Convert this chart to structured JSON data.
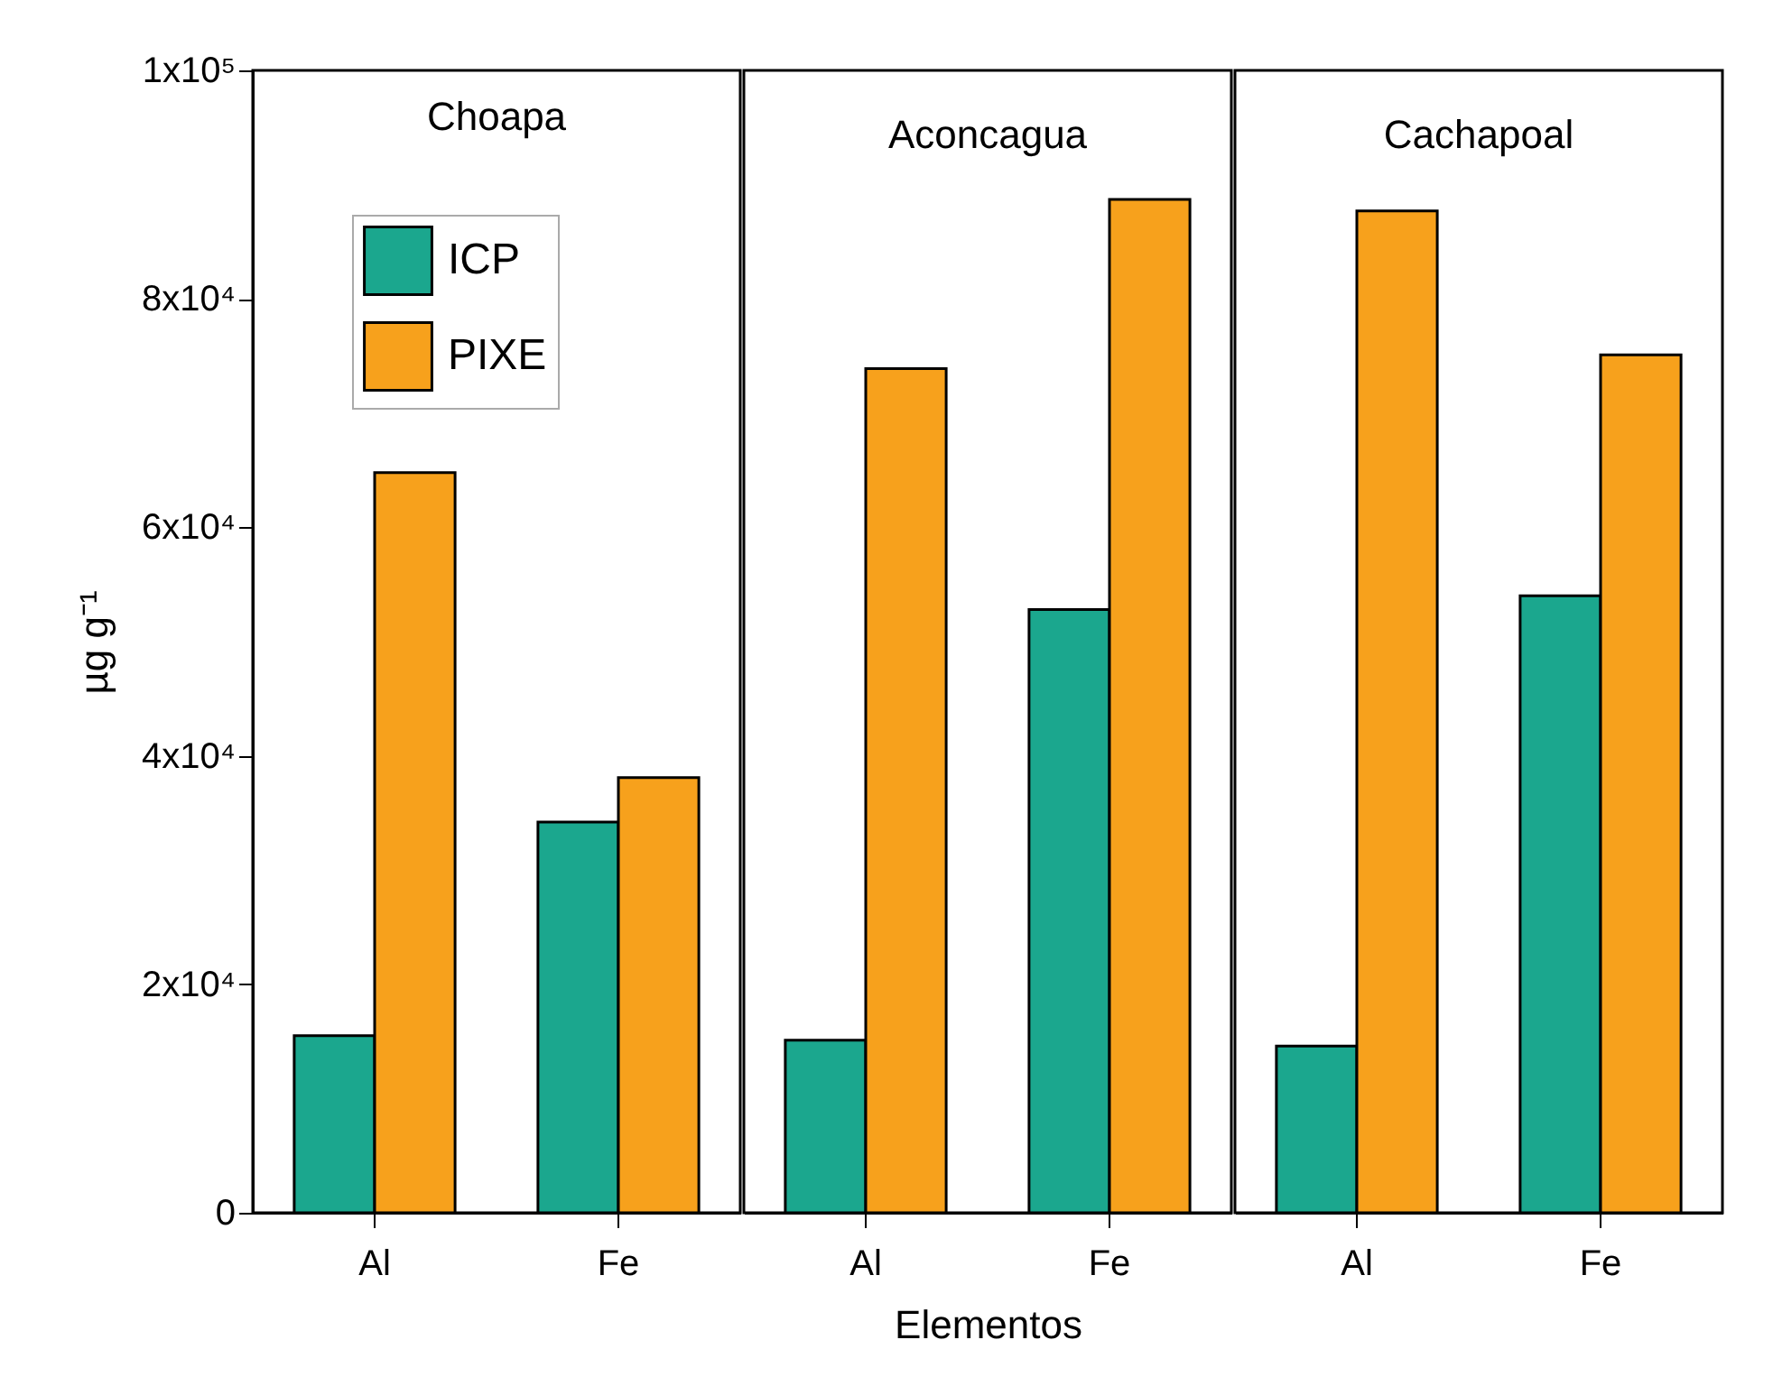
{
  "chart_data": [
    {
      "type": "bar",
      "title": "Choapa",
      "ylabel": "µg g⁻¹",
      "categories": [
        "Al",
        "Fe"
      ],
      "series": [
        {
          "name": "ICP",
          "color": "#1ba78e",
          "values": [
            15500,
            34200
          ]
        },
        {
          "name": "PIXE",
          "color": "#f7a11c",
          "values": [
            64800,
            38100
          ]
        }
      ],
      "ylim": [
        0,
        100000
      ],
      "yticks": [
        0,
        {
          "value": 20000,
          "label": "2x10⁴"
        },
        {
          "value": 40000,
          "label": "4x10⁴"
        },
        {
          "value": 60000,
          "label": "6x10⁴"
        },
        {
          "value": 80000,
          "label": "8x10⁴"
        },
        {
          "value": 100000,
          "label": "1x10⁵"
        }
      ],
      "legend": "top left"
    },
    {
      "type": "bar",
      "title": "Aconcagua",
      "xlabel": "Elementos",
      "categories": [
        "Al",
        "Fe"
      ],
      "series": [
        {
          "color": "#1ba78e",
          "values": [
            15100,
            52800
          ]
        },
        {
          "color": "#f7a11c",
          "values": [
            73900,
            88700
          ]
        }
      ],
      "ylim": [
        0,
        100000
      ],
      "tick_labels": "x"
    },
    {
      "type": "bar",
      "title": "Cachapoal",
      "categories": [
        "Al",
        "Fe"
      ],
      "series": [
        {
          "color": "#1ba78e",
          "values": [
            14600,
            54000
          ]
        },
        {
          "color": "#f7a11c",
          "values": [
            87700,
            75100
          ]
        }
      ],
      "ylim": [
        0,
        100000
      ],
      "tick_labels": "x"
    }
  ]
}
